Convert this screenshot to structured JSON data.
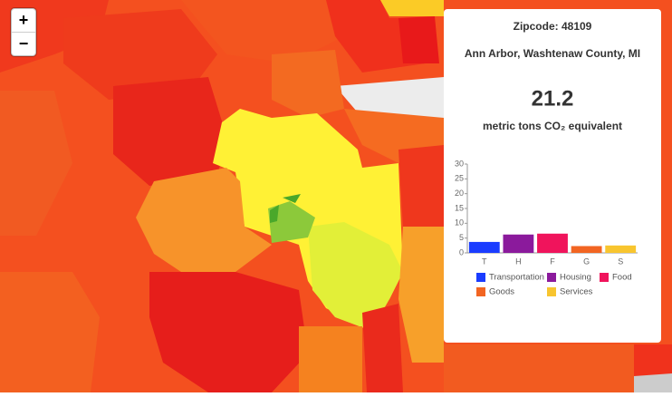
{
  "map": {
    "zoom_in": "+",
    "zoom_out": "−"
  },
  "panel": {
    "zipcode": "Zipcode: 48109",
    "place": "Ann Arbor, Washtenaw County, MI",
    "total": 21.2,
    "unit": "metric tons CO₂ equivalent"
  },
  "chart_data": {
    "type": "bar",
    "categories": [
      "T",
      "H",
      "F",
      "G",
      "S"
    ],
    "values": [
      3.7,
      6.2,
      6.5,
      2.3,
      2.5
    ],
    "colors": [
      "#1a3cff",
      "#8b1a9c",
      "#f0145c",
      "#f26522",
      "#f8c52f"
    ],
    "legend_labels": [
      "Transportation",
      "Housing",
      "Food",
      "Goods",
      "Services"
    ],
    "ylim": [
      0,
      30
    ],
    "yticks": [
      0,
      5,
      10,
      15,
      20,
      25,
      30
    ]
  }
}
